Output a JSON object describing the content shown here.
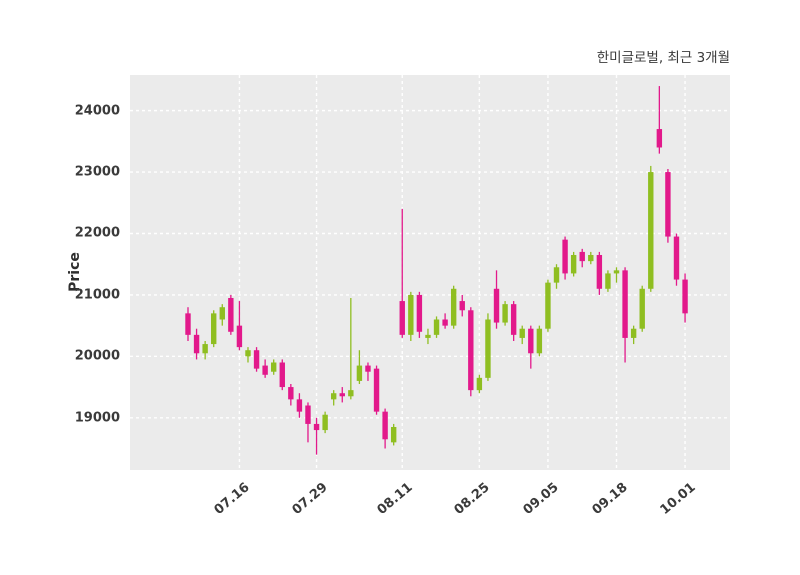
{
  "chart_data": {
    "type": "candlestick",
    "title": "한미글로벌, 최근 3개월",
    "ylabel": "Price",
    "xlabel": "",
    "grid": "white dashed, horizontal and vertical",
    "legend_position": "none",
    "ylim": [
      18150,
      24580
    ],
    "y_ticks": [
      19000,
      20000,
      21000,
      22000,
      23000,
      24000
    ],
    "x_ticks": [
      {
        "index": 6,
        "label": "07.16"
      },
      {
        "index": 15,
        "label": "07.29"
      },
      {
        "index": 25,
        "label": "08.11"
      },
      {
        "index": 34,
        "label": "08.25"
      },
      {
        "index": 42,
        "label": "09.05"
      },
      {
        "index": 50,
        "label": "09.18"
      },
      {
        "index": 58,
        "label": "10.01"
      }
    ],
    "colors": {
      "up": "#8fbe21",
      "down": "#e2198b",
      "plot_bg": "#ebebeb",
      "grid": "#ffffff",
      "text": "#3a3a3a"
    },
    "candle_format": "[open, high, low, close]",
    "candles": [
      [
        20700,
        20800,
        20250,
        20350
      ],
      [
        20350,
        20450,
        19950,
        20050
      ],
      [
        20050,
        20250,
        19950,
        20200
      ],
      [
        20200,
        20750,
        20150,
        20700
      ],
      [
        20600,
        20850,
        20500,
        20800
      ],
      [
        20950,
        21000,
        20350,
        20400
      ],
      [
        20500,
        20900,
        20100,
        20150
      ],
      [
        20000,
        20150,
        19900,
        20100
      ],
      [
        20100,
        20150,
        19750,
        19800
      ],
      [
        19850,
        19950,
        19650,
        19700
      ],
      [
        19750,
        19950,
        19700,
        19900
      ],
      [
        19900,
        19950,
        19450,
        19500
      ],
      [
        19500,
        19550,
        19200,
        19300
      ],
      [
        19300,
        19400,
        19000,
        19100
      ],
      [
        19200,
        19250,
        18600,
        18900
      ],
      [
        18900,
        19000,
        18400,
        18800
      ],
      [
        18800,
        19100,
        18750,
        19050
      ],
      [
        19300,
        19450,
        19200,
        19400
      ],
      [
        19400,
        19500,
        19250,
        19350
      ],
      [
        19350,
        20950,
        19300,
        19450
      ],
      [
        19600,
        20100,
        19550,
        19850
      ],
      [
        19850,
        19900,
        19600,
        19750
      ],
      [
        19800,
        19850,
        19050,
        19100
      ],
      [
        19100,
        19150,
        18500,
        18650
      ],
      [
        18600,
        18900,
        18550,
        18850
      ],
      [
        20900,
        22400,
        20300,
        20350
      ],
      [
        20350,
        21050,
        20250,
        21000
      ],
      [
        21000,
        21050,
        20300,
        20400
      ],
      [
        20300,
        20450,
        20200,
        20350
      ],
      [
        20350,
        20650,
        20300,
        20600
      ],
      [
        20600,
        20700,
        20450,
        20500
      ],
      [
        20500,
        21150,
        20450,
        21100
      ],
      [
        20900,
        21000,
        20650,
        20750
      ],
      [
        20750,
        20800,
        19350,
        19450
      ],
      [
        19450,
        19700,
        19400,
        19650
      ],
      [
        19650,
        20700,
        19600,
        20600
      ],
      [
        21100,
        21400,
        20450,
        20550
      ],
      [
        20550,
        20900,
        20500,
        20850
      ],
      [
        20850,
        20900,
        20250,
        20350
      ],
      [
        20300,
        20500,
        20200,
        20450
      ],
      [
        20450,
        20500,
        19800,
        20050
      ],
      [
        20050,
        20500,
        20000,
        20450
      ],
      [
        20450,
        21250,
        20400,
        21200
      ],
      [
        21200,
        21500,
        21100,
        21450
      ],
      [
        21900,
        21950,
        21250,
        21350
      ],
      [
        21350,
        21700,
        21300,
        21650
      ],
      [
        21700,
        21750,
        21450,
        21550
      ],
      [
        21550,
        21700,
        21500,
        21650
      ],
      [
        21650,
        21700,
        21000,
        21100
      ],
      [
        21100,
        21400,
        21050,
        21350
      ],
      [
        21350,
        21450,
        21200,
        21400
      ],
      [
        21400,
        21450,
        19900,
        20300
      ],
      [
        20300,
        20500,
        20200,
        20450
      ],
      [
        20450,
        21150,
        20400,
        21100
      ],
      [
        21100,
        23100,
        21050,
        23000
      ],
      [
        23700,
        24400,
        23300,
        23400
      ],
      [
        23000,
        23050,
        21850,
        21950
      ],
      [
        21950,
        22000,
        21150,
        21250
      ],
      [
        21250,
        21350,
        20550,
        20700
      ]
    ]
  }
}
